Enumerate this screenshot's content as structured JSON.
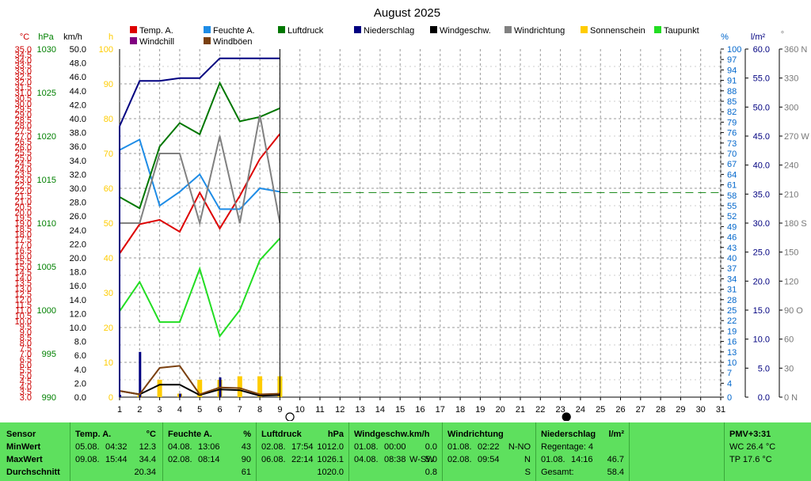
{
  "chart_data": {
    "type": "line",
    "title": "August 2025",
    "days": [
      1,
      2,
      3,
      4,
      5,
      6,
      7,
      8,
      9,
      10,
      11,
      12,
      13,
      14,
      15,
      16,
      17,
      18,
      19,
      20,
      21,
      22,
      23,
      24,
      25,
      26,
      27,
      28,
      29,
      30,
      31
    ],
    "axes": {
      "temp": {
        "unit": "°C",
        "min": 3.0,
        "max": 35.0,
        "step": 0.5,
        "color": "#cc0000"
      },
      "pressure": {
        "unit": "hPa",
        "min": 990,
        "max": 1030,
        "step": 5,
        "color": "#008000"
      },
      "wind": {
        "unit": "km/h",
        "min": 0.0,
        "max": 50.0,
        "step": 2.0,
        "color": "#000000"
      },
      "sun": {
        "unit": "h",
        "min": 0,
        "max": 100,
        "step": 10,
        "color": "#ffcc00"
      },
      "humidity": {
        "unit": "%",
        "ticks": [
          0,
          4,
          7,
          10,
          13,
          16,
          19,
          22,
          25,
          28,
          31,
          34,
          37,
          40,
          43,
          46,
          49,
          52,
          55,
          58,
          61,
          64,
          67,
          70,
          73,
          76,
          79,
          82,
          85,
          88,
          91,
          94,
          97,
          100
        ],
        "color": "#0066cc"
      },
      "rain": {
        "unit": "l/m²",
        "min": 0.0,
        "max": 60.0,
        "step": 5.0,
        "color": "#000080"
      },
      "direction": {
        "unit": "°",
        "ticks": [
          "0 N",
          "30",
          "60",
          "90 O",
          "120",
          "150",
          "180 S",
          "210",
          "240",
          "270 W",
          "300",
          "330",
          "360 N"
        ],
        "color": "#777777"
      }
    },
    "legend": [
      {
        "name": "Temp. A.",
        "color": "#dd0000"
      },
      {
        "name": "Feuchte A.",
        "color": "#1e8ce6"
      },
      {
        "name": "Luftdruck",
        "color": "#007700"
      },
      {
        "name": "Niederschlag",
        "color": "#000080"
      },
      {
        "name": "Windgeschw.",
        "color": "#000000"
      },
      {
        "name": "Windrichtung",
        "color": "#808080"
      },
      {
        "name": "Sonnenschein",
        "color": "#ffcc00"
      },
      {
        "name": "Taupunkt",
        "color": "#22dd22"
      },
      {
        "name": "Windchill",
        "color": "#800080"
      },
      {
        "name": "Windböen",
        "color": "#7a4010"
      }
    ],
    "series": [
      {
        "name": "Temp. A.",
        "axis": "temp",
        "color": "#dd0000",
        "x": [
          1,
          2,
          3,
          4,
          5,
          6,
          7,
          8,
          9
        ],
        "y": [
          16.2,
          18.9,
          19.3,
          18.2,
          21.8,
          18.5,
          21.5,
          24.9,
          27.2
        ]
      },
      {
        "name": "Feuchte A.",
        "axis": "humidity",
        "color": "#1e8ce6",
        "x": [
          1,
          2,
          3,
          4,
          5,
          6,
          7,
          8,
          9
        ],
        "y": [
          71,
          74,
          55,
          59,
          64,
          54,
          54,
          60,
          59
        ]
      },
      {
        "name": "Luftdruck",
        "axis": "pressure",
        "color": "#007700",
        "x": [
          1,
          2,
          3,
          4,
          5,
          6,
          7,
          8,
          9
        ],
        "y": [
          1013.0,
          1011.7,
          1018.8,
          1021.5,
          1020.2,
          1026.1,
          1021.7,
          1022.2,
          1023.2
        ]
      },
      {
        "name": "Niederschlag",
        "axis": "rain",
        "color": "#000080",
        "x": [
          1,
          2,
          3,
          4,
          5,
          6,
          7,
          8,
          9
        ],
        "y": [
          46.7,
          54.5,
          54.5,
          55.0,
          55.0,
          58.4,
          58.4,
          58.4,
          58.4
        ]
      },
      {
        "name": "Windgeschw.",
        "axis": "wind",
        "color": "#000000",
        "x": [
          1,
          2,
          3,
          4,
          5,
          6,
          7,
          8,
          9
        ],
        "y": [
          0.9,
          0.4,
          1.8,
          1.8,
          0.3,
          1.1,
          1.0,
          0.2,
          0.3
        ]
      },
      {
        "name": "Windböen",
        "axis": "wind",
        "color": "#7a4010",
        "x": [
          1,
          2,
          3,
          4,
          5,
          6,
          7,
          8,
          9
        ],
        "y": [
          0.9,
          0.4,
          4.2,
          4.5,
          0.4,
          1.4,
          1.3,
          0.4,
          0.5
        ]
      },
      {
        "name": "Windrichtung",
        "axis": "direction",
        "color": "#808080",
        "x": [
          1,
          2,
          3,
          4,
          5,
          6,
          7,
          8,
          9
        ],
        "y": [
          180,
          180,
          252,
          252,
          180,
          270,
          180,
          292,
          180
        ]
      },
      {
        "name": "Taupunkt",
        "axis": "temp",
        "color": "#22dd22",
        "x": [
          1,
          2,
          3,
          4,
          5,
          6,
          7,
          8,
          9
        ],
        "y": [
          10.9,
          13.6,
          9.9,
          9.9,
          14.8,
          8.6,
          11.0,
          15.6,
          17.6
        ]
      }
    ],
    "windchill_line": {
      "axis": "temp",
      "value": 21.8,
      "from_x": 9,
      "to_x": 31,
      "color": "#1e8c1e"
    },
    "sunshine_bars": [
      {
        "x": 2,
        "y": 0.5
      },
      {
        "x": 3,
        "y": 5
      },
      {
        "x": 4,
        "y": 1
      },
      {
        "x": 5,
        "y": 5
      },
      {
        "x": 6,
        "y": 5
      },
      {
        "x": 7,
        "y": 6
      },
      {
        "x": 8,
        "y": 6
      },
      {
        "x": 9,
        "y": 6
      }
    ],
    "rain_bars": [
      {
        "x": 1,
        "y": 0.4
      },
      {
        "x": 2,
        "y": 7.8
      },
      {
        "x": 4,
        "y": 0.6
      },
      {
        "x": 6,
        "y": 3.4
      }
    ],
    "moon_phases": [
      {
        "x": 9.5,
        "phase": "full"
      },
      {
        "x": 23.3,
        "phase": "new"
      }
    ]
  },
  "stats": {
    "row_labels": [
      "Sensor",
      "MinWert",
      "MaxWert",
      "Durchschnitt"
    ],
    "temp": {
      "title": "Temp. A.",
      "unit": "°C",
      "min_date": "05.08.",
      "min_time": "04:32",
      "min_val": "12.3",
      "max_date": "09.08.",
      "max_time": "15:44",
      "max_val": "34.4",
      "avg": "20.34"
    },
    "humidity": {
      "title": "Feuchte A.",
      "unit": "%",
      "min_date": "04.08.",
      "min_time": "13:06",
      "min_val": "43",
      "max_date": "02.08.",
      "max_time": "08:14",
      "max_val": "90",
      "avg": "61"
    },
    "pressure": {
      "title": "Luftdruck",
      "unit": "hPa",
      "min_date": "02.08.",
      "min_time": "17:54",
      "min_val": "1012.0",
      "max_date": "06.08.",
      "max_time": "22:14",
      "max_val": "1026.1",
      "avg": "1020.0"
    },
    "wind": {
      "title": "Windgeschw.",
      "unit": "km/h",
      "min_date": "01.08.",
      "min_time": "00:00",
      "min_val": "0.0",
      "max_date": "04.08.",
      "max_time": "08:38",
      "max_dir": "W-SW",
      "max_val": "5.0",
      "avg": "0.8"
    },
    "direction": {
      "title": "Windrichtung",
      "min_date": "01.08.",
      "min_time": "02:22",
      "min_val": "N-NO",
      "max_date": "02.08.",
      "max_time": "09:54",
      "max_val": "N",
      "avg": "S"
    },
    "rain": {
      "title": "Niederschlag",
      "unit": "l/m²",
      "row1": "Regentage: 4",
      "max_date": "01.08.",
      "max_time": "14:16",
      "max_val": "46.7",
      "total_label": "Gesamt:",
      "total": "58.4"
    },
    "pmv": {
      "title": "PMV+3:31",
      "wc": "WC 26.4 °C",
      "tp": "TP 17.6 °C"
    }
  }
}
